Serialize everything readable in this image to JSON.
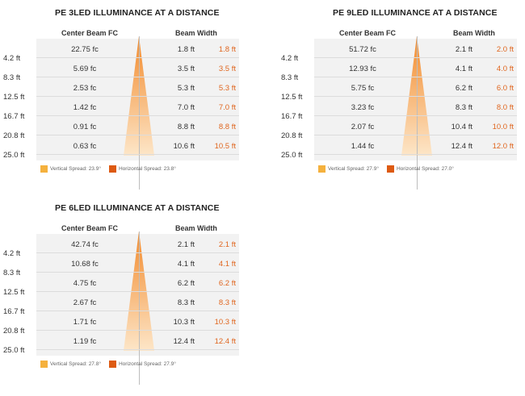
{
  "colors": {
    "vertical": "#f5b13d",
    "horizontal": "#dd5a12",
    "beam_top": "#f28a2c",
    "beam_bottom": "#fde6c8",
    "orange_text": "#e0661f"
  },
  "chart_data": [
    {
      "type": "table",
      "title": "PE 3LED ILLUMINANCE AT A DISTANCE",
      "headers": {
        "fc": "Center Beam FC",
        "bw": "Beam Width"
      },
      "rows": [
        {
          "distance": "4.2 ft",
          "fc": "22.75 fc",
          "vertical": "1.8 ft",
          "horizontal": "1.8 ft"
        },
        {
          "distance": "8.3 ft",
          "fc": "5.69 fc",
          "vertical": "3.5 ft",
          "horizontal": "3.5 ft"
        },
        {
          "distance": "12.5 ft",
          "fc": "2.53 fc",
          "vertical": "5.3 ft",
          "horizontal": "5.3 ft"
        },
        {
          "distance": "16.7 ft",
          "fc": "1.42 fc",
          "vertical": "7.0 ft",
          "horizontal": "7.0 ft"
        },
        {
          "distance": "20.8 ft",
          "fc": "0.91 fc",
          "vertical": "8.8 ft",
          "horizontal": "8.8 ft"
        },
        {
          "distance": "25.0 ft",
          "fc": "0.63 fc",
          "vertical": "10.6 ft",
          "horizontal": "10.5 ft"
        }
      ],
      "legend": {
        "vertical": "Vertical Spread: 23.9°",
        "horizontal": "Horizontal Spread: 23.8°"
      }
    },
    {
      "type": "table",
      "title": "PE 9LED ILLUMINANCE AT A DISTANCE",
      "headers": {
        "fc": "Center Beam FC",
        "bw": "Beam Width"
      },
      "rows": [
        {
          "distance": "4.2 ft",
          "fc": "51.72 fc",
          "vertical": "2.1 ft",
          "horizontal": "2.0 ft"
        },
        {
          "distance": "8.3 ft",
          "fc": "12.93 fc",
          "vertical": "4.1 ft",
          "horizontal": "4.0 ft"
        },
        {
          "distance": "12.5 ft",
          "fc": "5.75 fc",
          "vertical": "6.2 ft",
          "horizontal": "6.0 ft"
        },
        {
          "distance": "16.7 ft",
          "fc": "3.23 fc",
          "vertical": "8.3 ft",
          "horizontal": "8.0 ft"
        },
        {
          "distance": "20.8 ft",
          "fc": "2.07 fc",
          "vertical": "10.4 ft",
          "horizontal": "10.0 ft"
        },
        {
          "distance": "25.0 ft",
          "fc": "1.44 fc",
          "vertical": "12.4 ft",
          "horizontal": "12.0 ft"
        }
      ],
      "legend": {
        "vertical": "Vertical Spread: 27.9°",
        "horizontal": "Horizontal Spread: 27.0°"
      }
    },
    {
      "type": "table",
      "title": "PE 6LED ILLUMINANCE AT A DISTANCE",
      "headers": {
        "fc": "Center Beam FC",
        "bw": "Beam Width"
      },
      "rows": [
        {
          "distance": "4.2 ft",
          "fc": "42.74 fc",
          "vertical": "2.1 ft",
          "horizontal": "2.1 ft"
        },
        {
          "distance": "8.3 ft",
          "fc": "10.68 fc",
          "vertical": "4.1 ft",
          "horizontal": "4.1 ft"
        },
        {
          "distance": "12.5 ft",
          "fc": "4.75 fc",
          "vertical": "6.2 ft",
          "horizontal": "6.2 ft"
        },
        {
          "distance": "16.7 ft",
          "fc": "2.67 fc",
          "vertical": "8.3 ft",
          "horizontal": "8.3 ft"
        },
        {
          "distance": "20.8 ft",
          "fc": "1.71 fc",
          "vertical": "10.3 ft",
          "horizontal": "10.3 ft"
        },
        {
          "distance": "25.0 ft",
          "fc": "1.19 fc",
          "vertical": "12.4 ft",
          "horizontal": "12.4 ft"
        }
      ],
      "legend": {
        "vertical": "Vertical Spread: 27.8°",
        "horizontal": "Horizontal Spread: 27.9°"
      }
    }
  ]
}
